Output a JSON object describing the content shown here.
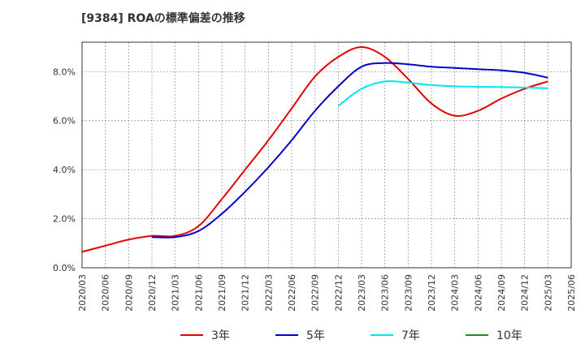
{
  "chart_data": {
    "type": "line",
    "title": "[9384]  ROAの標準偏差の推移",
    "xlabel": "",
    "ylabel": "",
    "ylim": [
      0,
      9.2
    ],
    "yticks": [
      "0.0%",
      "2.0%",
      "4.0%",
      "6.0%",
      "8.0%"
    ],
    "ytick_values": [
      0,
      2,
      4,
      6,
      8
    ],
    "xticks": [
      "2020/03",
      "2020/06",
      "2020/09",
      "2020/12",
      "2021/03",
      "2021/06",
      "2021/09",
      "2021/12",
      "2022/03",
      "2022/06",
      "2022/09",
      "2022/12",
      "2023/03",
      "2023/06",
      "2023/09",
      "2023/12",
      "2024/03",
      "2024/06",
      "2024/09",
      "2024/12",
      "2025/03",
      "2025/06"
    ],
    "grid": true,
    "legend_position": "bottom",
    "series": [
      {
        "name": "3年",
        "color": "#e60000",
        "start_index": 0,
        "values": [
          0.65,
          0.9,
          1.15,
          1.3,
          1.3,
          1.7,
          2.8,
          4.0,
          5.2,
          6.5,
          7.8,
          8.6,
          9.0,
          8.6,
          7.7,
          6.7,
          6.2,
          6.4,
          6.9,
          7.3,
          7.6
        ]
      },
      {
        "name": "5年",
        "color": "#0000cc",
        "start_index": 3,
        "values": [
          1.25,
          1.25,
          1.5,
          2.2,
          3.1,
          4.1,
          5.2,
          6.4,
          7.4,
          8.2,
          8.35,
          8.3,
          8.2,
          8.15,
          8.1,
          8.05,
          7.95,
          7.75
        ]
      },
      {
        "name": "7年",
        "color": "#00e5ee",
        "start_index": 11,
        "values": [
          6.6,
          7.3,
          7.6,
          7.55,
          7.45,
          7.4,
          7.38,
          7.37,
          7.35,
          7.32
        ]
      },
      {
        "name": "10年",
        "color": "#228b22",
        "start_index": 0,
        "values": []
      }
    ]
  }
}
